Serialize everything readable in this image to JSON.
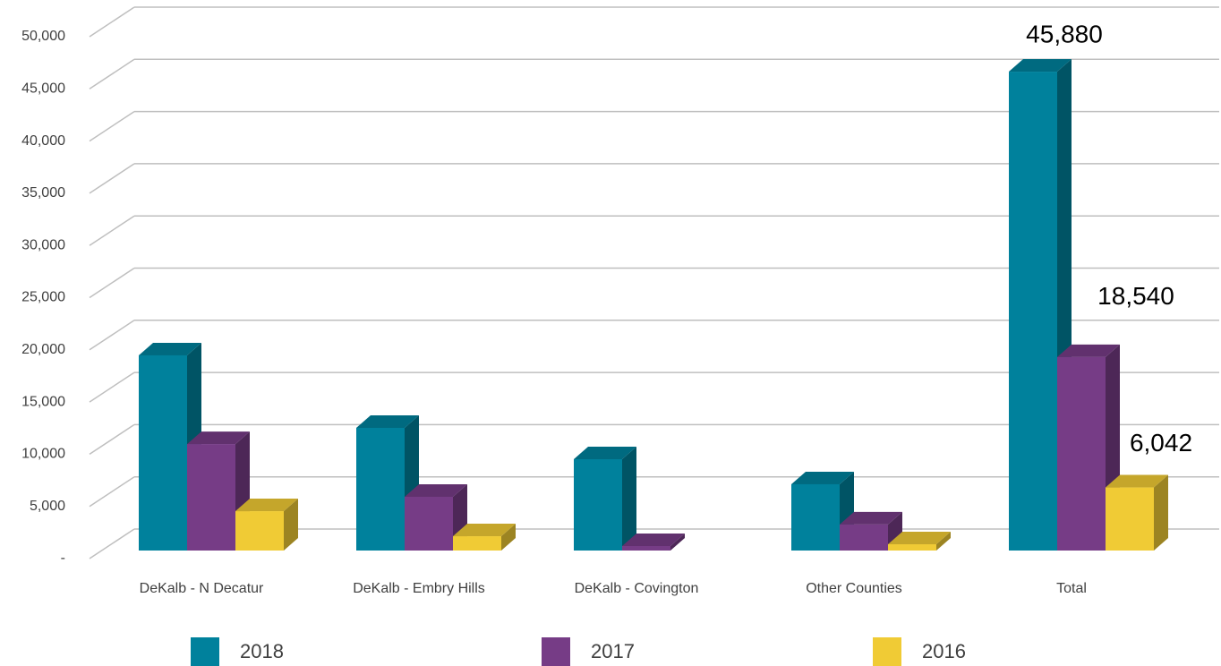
{
  "chart_data": {
    "type": "bar3d",
    "categories": [
      "DeKalb  - N Decatur",
      "DeKalb - Embry Hills",
      "DeKalb - Covington",
      "Other Counties",
      "Total"
    ],
    "series": [
      {
        "name": "2018",
        "color": "#00819c",
        "values": [
          18700,
          11750,
          8750,
          6350,
          45880
        ],
        "value_labels": [
          null,
          null,
          null,
          null,
          "45,880"
        ]
      },
      {
        "name": "2017",
        "color": "#763c86",
        "values": [
          10200,
          5150,
          430,
          2500,
          18540
        ],
        "value_labels": [
          null,
          null,
          null,
          null,
          "18,540"
        ]
      },
      {
        "name": "2016",
        "color": "#f0cb35",
        "values": [
          3770,
          1370,
          null,
          600,
          6042
        ],
        "value_labels": [
          null,
          null,
          null,
          null,
          "6,042"
        ]
      }
    ],
    "ylim": [
      0,
      50000
    ],
    "yticks": [
      {
        "value": 0,
        "label": "-"
      },
      {
        "value": 5000,
        "label": "5,000"
      },
      {
        "value": 10000,
        "label": "10,000"
      },
      {
        "value": 15000,
        "label": "15,000"
      },
      {
        "value": 20000,
        "label": "20,000"
      },
      {
        "value": 25000,
        "label": "25,000"
      },
      {
        "value": 30000,
        "label": "30,000"
      },
      {
        "value": 35000,
        "label": "35,000"
      },
      {
        "value": 40000,
        "label": "40,000"
      },
      {
        "value": 45000,
        "label": "45,000"
      },
      {
        "value": 50000,
        "label": "50,000"
      }
    ],
    "grid": true,
    "legend": "bottom"
  }
}
